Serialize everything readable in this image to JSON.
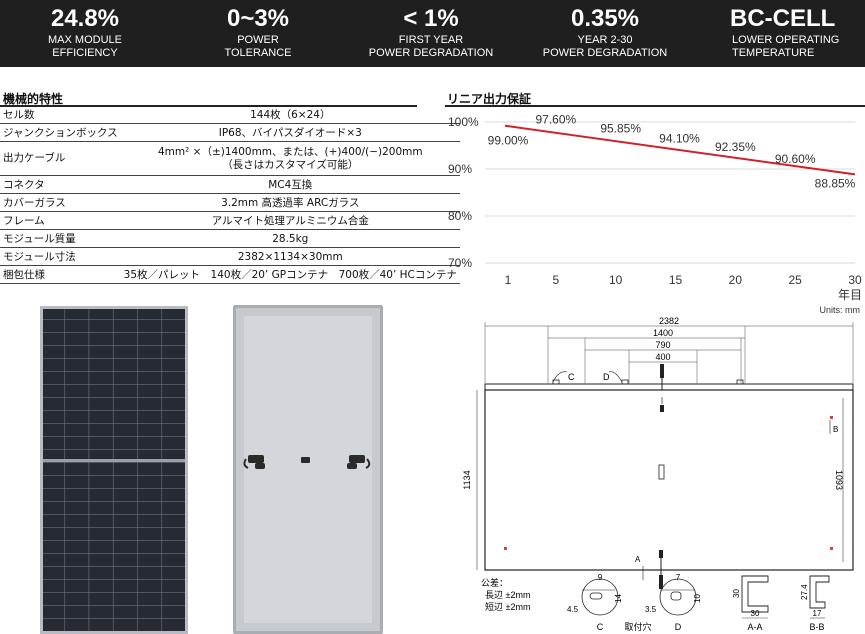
{
  "banner": {
    "items": [
      {
        "value": "24.8%",
        "label1": "MAX MODULE",
        "label2": "EFFICIENCY"
      },
      {
        "value": "0~3%",
        "label1": "POWER",
        "label2": "TOLERANCE"
      },
      {
        "value": "< 1%",
        "label1": "FIRST YEAR",
        "label2": "POWER DEGRADATION"
      },
      {
        "value": "0.35%",
        "label1": "YEAR 2-30",
        "label2": "POWER DEGRADATION"
      },
      {
        "value": "BC-CELL",
        "label1": "LOWER OPERATING",
        "label2": "TEMPERATURE"
      }
    ]
  },
  "specs": {
    "title": "機械的特性",
    "rows": [
      {
        "k": "セル数",
        "v": "144枚（6×24）"
      },
      {
        "k": "ジャンクションボックス",
        "v": "IP68、バイパスダイオード×3"
      },
      {
        "k": "出力ケーブル",
        "v": "4mm² ×（±)1400mm、または、(+)400/(−)200mm",
        "v2": "（長さはカスタマイズ可能）"
      },
      {
        "k": "コネクタ",
        "v": "MC4互換"
      },
      {
        "k": "カバーガラス",
        "v": "3.2mm 高透過率 ARCガラス"
      },
      {
        "k": "フレーム",
        "v": "アルマイト処理アルミニウム合金"
      },
      {
        "k": "モジュール質量",
        "v": "28.5kg"
      },
      {
        "k": "モジュール寸法",
        "v": "2382×1134×30mm"
      },
      {
        "k": "梱包仕様",
        "v": "35枚／パレット　140枚／20’ GPコンテナ　700枚／40’ HCコンテナ"
      }
    ]
  },
  "chart_data": {
    "type": "line",
    "title": "リニア出力保証",
    "xlabel": "年目",
    "ylabel": "",
    "x": [
      1,
      5,
      10,
      15,
      20,
      25,
      30
    ],
    "xticks": [
      "1",
      "5",
      "10",
      "15",
      "20",
      "25",
      "30"
    ],
    "yticks": [
      "100%",
      "90%",
      "80%",
      "70%"
    ],
    "ylim": [
      70,
      100
    ],
    "values": [
      99.0,
      97.6,
      95.85,
      94.1,
      92.35,
      90.6,
      88.85
    ],
    "labels": [
      "99.00%",
      "97.60%",
      "95.85%",
      "94.10%",
      "92.35%",
      "90.60%",
      "88.85%"
    ],
    "line_start": {
      "x": 0,
      "y": 100
    },
    "grid": true,
    "color": "#d0202a"
  },
  "drawing": {
    "units": "Units: mm",
    "dims": {
      "total": "2382",
      "d1400": "1400",
      "d790": "790",
      "d400": "400",
      "height": "1134",
      "inner": "1093"
    },
    "labels": {
      "c": "C",
      "d": "D",
      "bb": "B",
      "aa": "A"
    },
    "tolerance": {
      "title": "公差：",
      "long": "長辺 ±2mm",
      "short": "短辺 ±2mm"
    },
    "details": {
      "c_label": "C",
      "d_label": "D",
      "aa_label": "A-A",
      "bb_label": "B-B",
      "mount": "取付穴",
      "c_w": "9",
      "c_h": "14",
      "c_r": "4.5",
      "d_w": "7",
      "d_h": "10",
      "d_r": "3.5",
      "aa_h": "30",
      "aa_w": "30",
      "bb_h": "27.4",
      "bb_w": "17"
    }
  }
}
